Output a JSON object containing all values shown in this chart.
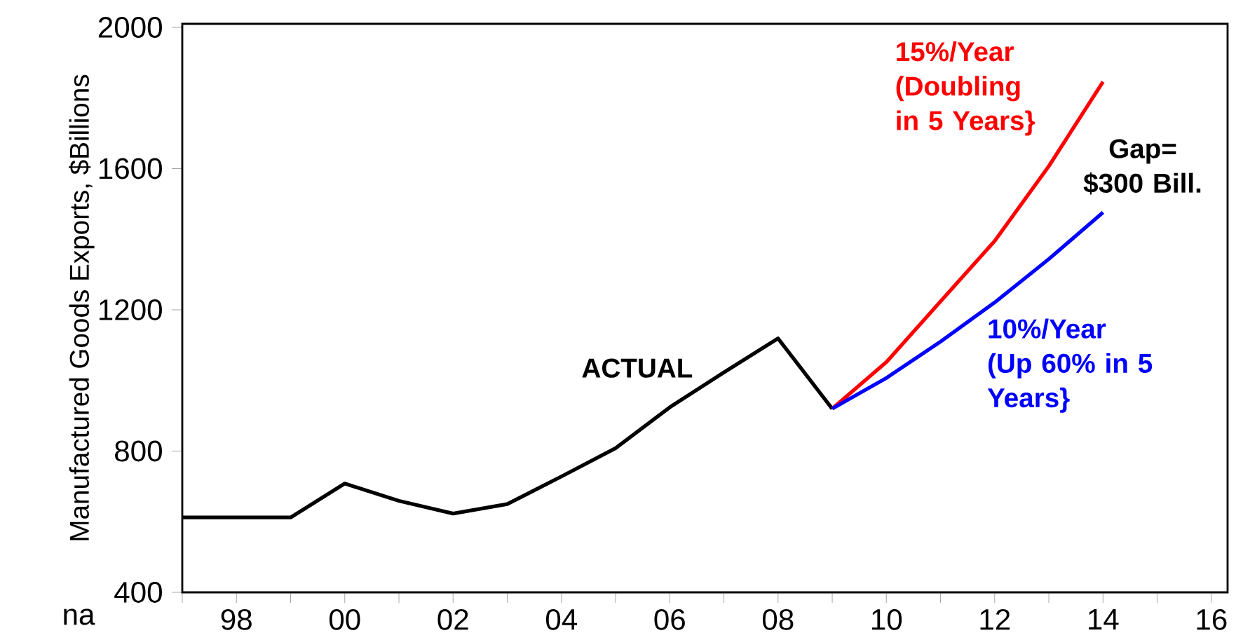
{
  "chart_data": {
    "type": "line",
    "ylabel": "Manufactured Goods Exports, $Billions",
    "xlim": [
      1997,
      2016.3
    ],
    "ylim": [
      400,
      2010
    ],
    "xticks": [
      {
        "value": 1997,
        "label": null
      },
      {
        "value": 1998,
        "label": "98"
      },
      {
        "value": 1999,
        "label": null
      },
      {
        "value": 2000,
        "label": "00"
      },
      {
        "value": 2001,
        "label": null
      },
      {
        "value": 2002,
        "label": "02"
      },
      {
        "value": 2003,
        "label": null
      },
      {
        "value": 2004,
        "label": "04"
      },
      {
        "value": 2005,
        "label": null
      },
      {
        "value": 2006,
        "label": "06"
      },
      {
        "value": 2007,
        "label": null
      },
      {
        "value": 2008,
        "label": "08"
      },
      {
        "value": 2009,
        "label": null
      },
      {
        "value": 2010,
        "label": "10"
      },
      {
        "value": 2011,
        "label": null
      },
      {
        "value": 2012,
        "label": "12"
      },
      {
        "value": 2013,
        "label": null
      },
      {
        "value": 2014,
        "label": "14"
      },
      {
        "value": 2015,
        "label": null
      },
      {
        "value": 2016,
        "label": "16"
      }
    ],
    "yticks": [
      400,
      800,
      1200,
      1600,
      2000
    ],
    "series": [
      {
        "name": "ACTUAL",
        "color": "#000000",
        "x": [
          1997,
          1998,
          1999,
          2000,
          2001,
          2002,
          2003,
          2004,
          2005,
          2006,
          2007,
          2008,
          2009
        ],
        "values": [
          612,
          612,
          612,
          708,
          659,
          623,
          650,
          728,
          808,
          924,
          1023,
          1119,
          920
        ]
      },
      {
        "name": "15%/Year (Doubling in 5 Years}",
        "color": "#ff0000",
        "x": [
          2009,
          2010,
          2011,
          2012,
          2013,
          2014
        ],
        "values": [
          920,
          1052,
          1224,
          1395,
          1607,
          1846
        ]
      },
      {
        "name": "10%/Year (Up 60% in 5 Years}",
        "color": "#0000ff",
        "x": [
          2009,
          2010,
          2011,
          2012,
          2013,
          2014
        ],
        "values": [
          920,
          1007,
          1110,
          1221,
          1344,
          1476
        ]
      }
    ],
    "annotations": [
      "Gap= $300 Bill.",
      "na"
    ],
    "grid": false,
    "marker": "none",
    "line_style": "solid"
  }
}
